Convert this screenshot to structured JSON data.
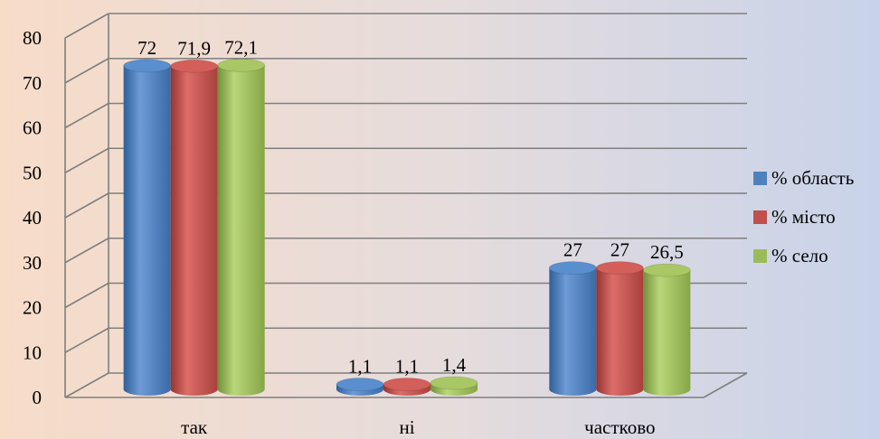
{
  "chart_data": {
    "type": "bar",
    "categories": [
      "так",
      "ні",
      "частково"
    ],
    "series": [
      {
        "name": "% область",
        "values": [
          72,
          1.1,
          27
        ],
        "labels": [
          "72",
          "1,1",
          "27"
        ],
        "color": "#4f81bd"
      },
      {
        "name": "% місто",
        "values": [
          71.9,
          1.1,
          27
        ],
        "labels": [
          "71,9",
          "1,1",
          "27"
        ],
        "color": "#c0504d"
      },
      {
        "name": "% село",
        "values": [
          72.1,
          1.4,
          26.5
        ],
        "labels": [
          "72,1",
          "1,4",
          "26,5"
        ],
        "color": "#9bbb59"
      }
    ],
    "y_ticks": [
      "0",
      "10",
      "20",
      "30",
      "40",
      "50",
      "60",
      "70",
      "80"
    ],
    "ylim": [
      0,
      80
    ],
    "grid": true,
    "legend_position": "right",
    "three_d": true
  }
}
